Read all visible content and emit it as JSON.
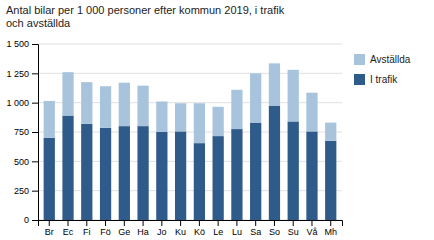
{
  "chart_data": {
    "type": "bar",
    "stacked": true,
    "title": "Antal bilar per 1 000 personer efter kommun 2019, i trafik\noch avställda",
    "categories": [
      "Br",
      "Ec",
      "Fi",
      "Fö",
      "Ge",
      "Ha",
      "Jo",
      "Ku",
      "Kö",
      "Le",
      "Lu",
      "Sa",
      "So",
      "Su",
      "Vå",
      "Mh"
    ],
    "series": [
      {
        "name": "I trafik",
        "color": "#2E5B8A",
        "values": [
          700,
          890,
          820,
          785,
          800,
          800,
          750,
          755,
          655,
          715,
          775,
          830,
          975,
          840,
          755,
          675
        ]
      },
      {
        "name": "Avställda",
        "color": "#A8C4DC",
        "values": [
          315,
          370,
          355,
          355,
          370,
          345,
          260,
          240,
          340,
          250,
          335,
          420,
          360,
          440,
          330,
          155
        ]
      }
    ],
    "ylim": [
      0,
      1500
    ],
    "yticks": [
      0,
      250,
      500,
      750,
      {
        "value": 1000,
        "label": "1 000"
      },
      {
        "value": 1250,
        "label": "1 250"
      },
      {
        "value": 1500,
        "label": "1 500"
      }
    ],
    "grid": true,
    "legend": "right"
  }
}
